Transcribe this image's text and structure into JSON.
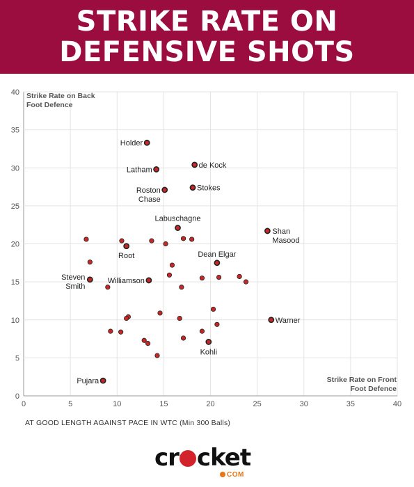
{
  "header": {
    "title_line1": "STRIKE RATE ON",
    "title_line2": "DEFENSIVE SHOTS",
    "bg_color": "#9c0d3f"
  },
  "chart_data": {
    "type": "scatter",
    "xlim": [
      0,
      40
    ],
    "ylim": [
      0,
      40
    ],
    "xticks": [
      "0",
      "5",
      "10",
      "15",
      "20",
      "25",
      "30",
      "35",
      "40"
    ],
    "yticks": [
      "0",
      "5",
      "10",
      "15",
      "20",
      "25",
      "30",
      "35",
      "40"
    ],
    "grid": true,
    "ylabel_lines": [
      "Strike Rate on Back",
      "Foot Defence"
    ],
    "xlabel_lines": [
      "Strike Rate on Front",
      "Foot Defence"
    ],
    "subtitle": "AT GOOD LENGTH AGAINST PACE IN WTC (Min 300 Balls)",
    "marker_fill": "#c62828",
    "points": [
      {
        "x": 13.2,
        "y": 33.3,
        "label": "Holder"
      },
      {
        "x": 18.3,
        "y": 30.4,
        "label": "de Kock"
      },
      {
        "x": 14.2,
        "y": 29.8,
        "label": "Latham"
      },
      {
        "x": 18.1,
        "y": 27.4,
        "label": "Stokes"
      },
      {
        "x": 15.1,
        "y": 27.1,
        "label": "Roston Chase"
      },
      {
        "x": 16.5,
        "y": 22.1,
        "label": "Labuschagne"
      },
      {
        "x": 26.1,
        "y": 21.7,
        "label": "Shan Masood"
      },
      {
        "x": 11.0,
        "y": 19.7,
        "label": "Root"
      },
      {
        "x": 20.7,
        "y": 17.5,
        "label": "Dean Elgar"
      },
      {
        "x": 7.1,
        "y": 15.3,
        "label": "Steven Smith"
      },
      {
        "x": 13.4,
        "y": 15.2,
        "label": "Williamson"
      },
      {
        "x": 26.5,
        "y": 10.0,
        "label": "Warner"
      },
      {
        "x": 19.8,
        "y": 7.1,
        "label": "Kohli"
      },
      {
        "x": 8.5,
        "y": 2.0,
        "label": "Pujara"
      },
      {
        "x": 6.7,
        "y": 20.6
      },
      {
        "x": 10.5,
        "y": 20.4
      },
      {
        "x": 13.7,
        "y": 20.4
      },
      {
        "x": 15.2,
        "y": 20.0
      },
      {
        "x": 17.1,
        "y": 20.7
      },
      {
        "x": 18.0,
        "y": 20.6
      },
      {
        "x": 7.1,
        "y": 17.6
      },
      {
        "x": 15.9,
        "y": 17.2
      },
      {
        "x": 15.6,
        "y": 15.9
      },
      {
        "x": 19.1,
        "y": 15.5
      },
      {
        "x": 20.9,
        "y": 15.6
      },
      {
        "x": 23.1,
        "y": 15.7
      },
      {
        "x": 23.8,
        "y": 15.0
      },
      {
        "x": 9.0,
        "y": 14.3
      },
      {
        "x": 16.9,
        "y": 14.3
      },
      {
        "x": 14.6,
        "y": 10.9
      },
      {
        "x": 20.3,
        "y": 11.4
      },
      {
        "x": 11.2,
        "y": 10.4
      },
      {
        "x": 11.0,
        "y": 10.2
      },
      {
        "x": 16.7,
        "y": 10.2
      },
      {
        "x": 20.7,
        "y": 9.4
      },
      {
        "x": 9.3,
        "y": 8.5
      },
      {
        "x": 10.4,
        "y": 8.4
      },
      {
        "x": 19.1,
        "y": 8.5
      },
      {
        "x": 17.1,
        "y": 7.6
      },
      {
        "x": 12.9,
        "y": 7.3
      },
      {
        "x": 13.3,
        "y": 6.9
      },
      {
        "x": 14.3,
        "y": 5.3
      }
    ]
  },
  "brand": {
    "logo_text_left": "cr",
    "logo_text_right": "cket",
    "logo_suffix": "COM"
  }
}
